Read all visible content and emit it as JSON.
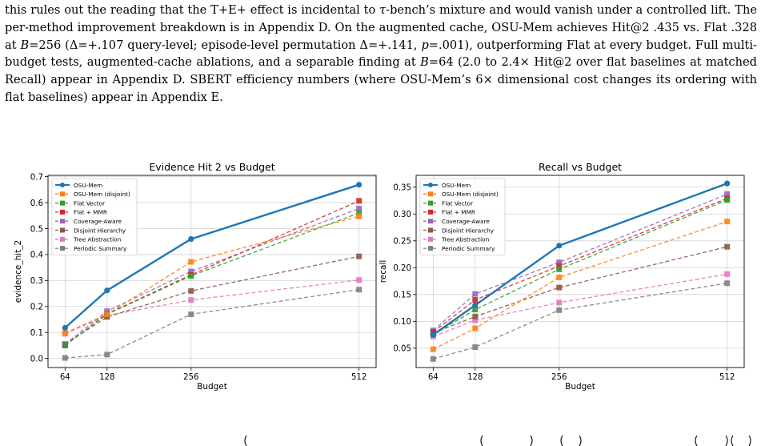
{
  "paragraph": {
    "s1": "this rules out the reading that the T+E+ effect is incidental to ",
    "tau": "τ",
    "s2": "-bench’s mixture and would vanish under a controlled lift. The per-method improvement breakdown is in Appendix D. On the augmented cache, OSU-Mem achieves Hit@2 .435 vs. Flat .328 at ",
    "B1": "B",
    "s3": "=256 (Δ=+.107 query-level; episode-level permutation Δ=+.141, ",
    "p": "p",
    "s4": "=.001), outperforming Flat at every budget. Full multi-budget tests, augmented-cache ablations, and a separable finding at ",
    "B2": "B",
    "s5": "=64 (2.0 to 2.4× Hit@2 over flat baselines at matched Recall) appear in Appendix D. SBERT efficiency numbers (where OSU-Mem’s 6× dimensional cost changes its ordering with flat baselines) appear in Appendix E."
  },
  "chart_data": [
    {
      "type": "line",
      "title": "Evidence Hit 2 vs Budget",
      "xlabel": "Budget",
      "ylabel": "evidence_hit_2",
      "x": [
        64,
        128,
        256,
        512
      ],
      "xlim": [
        38,
        538
      ],
      "ylim": [
        -0.035,
        0.705
      ],
      "yticks": [
        "0.0",
        "0.1",
        "0.2",
        "0.3",
        "0.4",
        "0.5",
        "0.6",
        "0.7"
      ],
      "ytick_values": [
        0.0,
        0.1,
        0.2,
        0.3,
        0.4,
        0.5,
        0.6,
        0.7
      ],
      "xticks": [
        "64",
        "128",
        "256",
        "512"
      ],
      "grid": true,
      "legend": "top-left",
      "series": [
        {
          "name": "OSU-Mem",
          "color": "#1f77b4",
          "style": "solid",
          "marker": "circle",
          "values": [
            0.118,
            0.262,
            0.46,
            0.669
          ]
        },
        {
          "name": "OSU-Mem (disjoint)",
          "color": "#ff7f0e",
          "style": "dashed",
          "marker": "square",
          "values": [
            0.098,
            0.17,
            0.372,
            0.547
          ]
        },
        {
          "name": "Flat Vector",
          "color": "#2ca02c",
          "style": "dashed",
          "marker": "square",
          "values": [
            0.05,
            0.17,
            0.318,
            0.56
          ]
        },
        {
          "name": "Flat + MMR",
          "color": "#d62728",
          "style": "dashed",
          "marker": "square",
          "values": [
            0.05,
            0.172,
            0.322,
            0.607
          ]
        },
        {
          "name": "Coverage-Aware",
          "color": "#9467bd",
          "style": "dashed",
          "marker": "square",
          "values": [
            0.055,
            0.182,
            0.335,
            0.577
          ]
        },
        {
          "name": "Disjoint Hierarchy",
          "color": "#8c564b",
          "style": "dashed",
          "marker": "square",
          "values": [
            0.055,
            0.16,
            0.26,
            0.393
          ]
        },
        {
          "name": "Tree Abstraction",
          "color": "#e377c2",
          "style": "dashed",
          "marker": "square",
          "values": [
            0.095,
            0.165,
            0.225,
            0.302
          ]
        },
        {
          "name": "Periodic Summary",
          "color": "#7f7f7f",
          "style": "dashed",
          "marker": "square",
          "values": [
            0.002,
            0.015,
            0.17,
            0.265
          ]
        }
      ]
    },
    {
      "type": "line",
      "title": "Recall vs Budget",
      "xlabel": "Budget",
      "ylabel": "recall",
      "x": [
        64,
        128,
        256,
        512
      ],
      "xlim": [
        38,
        538
      ],
      "ylim": [
        0.014,
        0.372
      ],
      "yticks": [
        "0.05",
        "0.10",
        "0.15",
        "0.20",
        "0.25",
        "0.30",
        "0.35"
      ],
      "ytick_values": [
        0.05,
        0.1,
        0.15,
        0.2,
        0.25,
        0.3,
        0.35
      ],
      "xticks": [
        "64",
        "128",
        "256",
        "512"
      ],
      "grid": true,
      "legend": "top-left",
      "series": [
        {
          "name": "OSU-Mem",
          "color": "#1f77b4",
          "style": "solid",
          "marker": "circle",
          "values": [
            0.075,
            0.13,
            0.241,
            0.357
          ]
        },
        {
          "name": "OSU-Mem (disjoint)",
          "color": "#ff7f0e",
          "style": "dashed",
          "marker": "square",
          "values": [
            0.048,
            0.087,
            0.182,
            0.286
          ]
        },
        {
          "name": "Flat Vector",
          "color": "#2ca02c",
          "style": "dashed",
          "marker": "square",
          "values": [
            0.075,
            0.122,
            0.197,
            0.326
          ]
        },
        {
          "name": "Flat + MMR",
          "color": "#d62728",
          "style": "dashed",
          "marker": "square",
          "values": [
            0.08,
            0.14,
            0.203,
            0.329
          ]
        },
        {
          "name": "Coverage-Aware",
          "color": "#9467bd",
          "style": "dashed",
          "marker": "square",
          "values": [
            0.083,
            0.151,
            0.21,
            0.337
          ]
        },
        {
          "name": "Disjoint Hierarchy",
          "color": "#8c564b",
          "style": "dashed",
          "marker": "square",
          "values": [
            0.078,
            0.109,
            0.163,
            0.239
          ]
        },
        {
          "name": "Tree Abstraction",
          "color": "#e377c2",
          "style": "dashed",
          "marker": "square",
          "values": [
            0.072,
            0.102,
            0.135,
            0.188
          ]
        },
        {
          "name": "Periodic Summary",
          "color": "#7f7f7f",
          "style": "dashed",
          "marker": "square",
          "values": [
            0.03,
            0.052,
            0.121,
            0.171
          ]
        }
      ]
    }
  ]
}
